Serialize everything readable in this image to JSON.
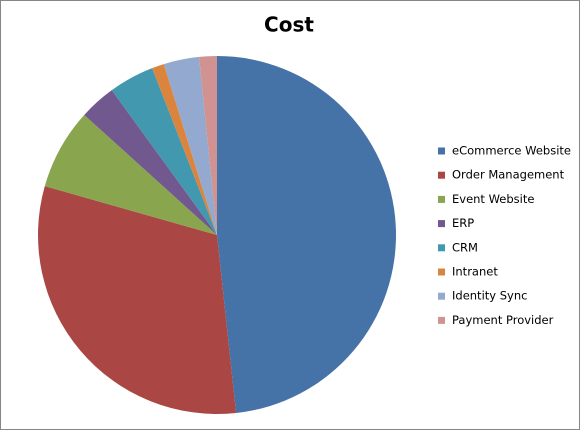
{
  "chart_data": {
    "type": "pie",
    "title": "Cost",
    "categories": [
      "eCommerce Website",
      "Order Management",
      "Event Website",
      "ERP",
      "CRM",
      "Intranet",
      "Identity Sync",
      "Payment Provider"
    ],
    "values": [
      48.3,
      31.1,
      7.3,
      3.3,
      4.1,
      1.1,
      3.2,
      1.6
    ],
    "colors": [
      "#4572a7",
      "#aa4643",
      "#89a54e",
      "#71588f",
      "#4198af",
      "#db843d",
      "#93a9cf",
      "#d19392"
    ],
    "legend": "right"
  }
}
